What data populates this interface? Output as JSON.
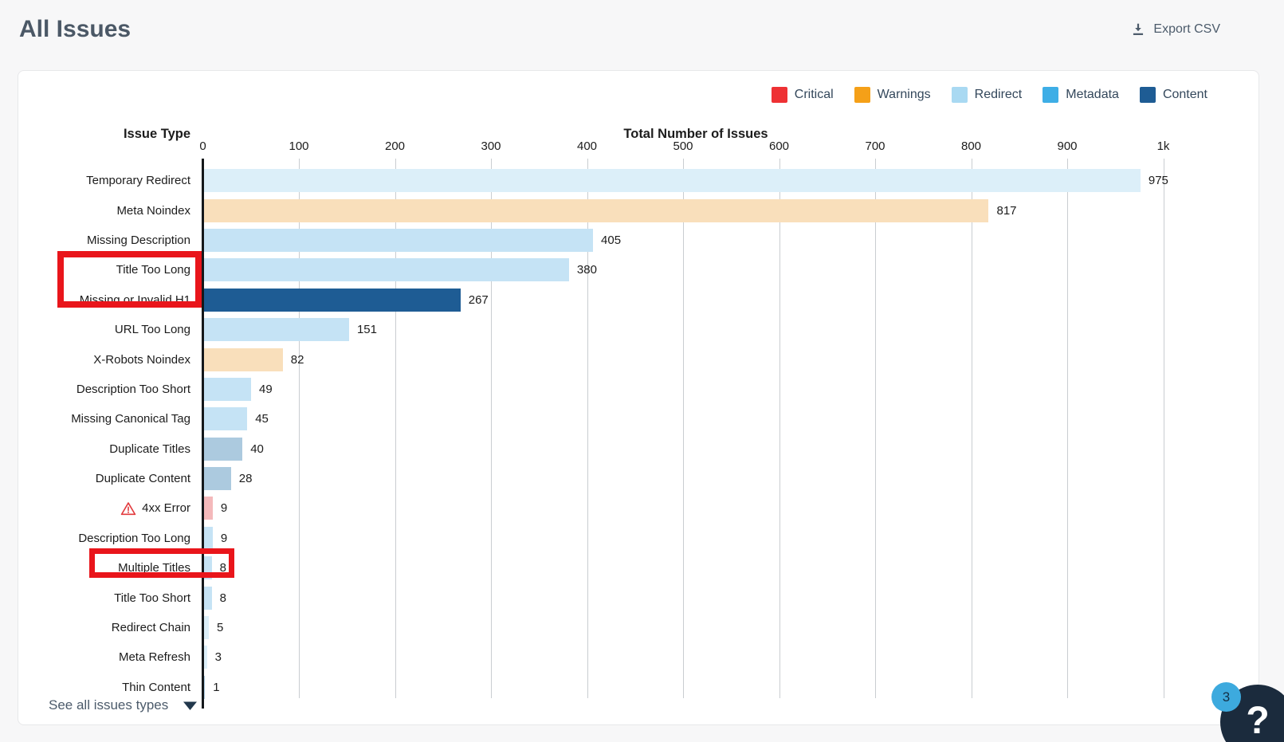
{
  "page": {
    "title": "All Issues"
  },
  "toolbar": {
    "export_label": "Export CSV"
  },
  "legend": {
    "items": [
      {
        "label": "Critical",
        "color": "#ee3134"
      },
      {
        "label": "Warnings",
        "color": "#f5a018"
      },
      {
        "label": "Redirect",
        "color": "#a9d9f2"
      },
      {
        "label": "Metadata",
        "color": "#3eaee6"
      },
      {
        "label": "Content",
        "color": "#1e5c94"
      }
    ]
  },
  "chart_data": {
    "type": "bar",
    "orientation": "horizontal",
    "ylabel_header": "Issue Type",
    "xlabel_header": "Total Number of Issues",
    "xlim": [
      0,
      1000
    ],
    "grid": "vertical",
    "x_ticks": [
      {
        "value": 0,
        "label": "0"
      },
      {
        "value": 100,
        "label": "100"
      },
      {
        "value": 200,
        "label": "200"
      },
      {
        "value": 300,
        "label": "300"
      },
      {
        "value": 400,
        "label": "400"
      },
      {
        "value": 500,
        "label": "500"
      },
      {
        "value": 600,
        "label": "600"
      },
      {
        "value": 700,
        "label": "700"
      },
      {
        "value": 800,
        "label": "800"
      },
      {
        "value": 900,
        "label": "900"
      },
      {
        "value": 1000,
        "label": "1k"
      }
    ],
    "bars": [
      {
        "label": "Temporary Redirect",
        "value": 975,
        "category": "Redirect",
        "color": "#dceff9",
        "warning_icon": false
      },
      {
        "label": "Meta Noindex",
        "value": 817,
        "category": "Warnings",
        "color": "#f9dfbb",
        "warning_icon": false
      },
      {
        "label": "Missing Description",
        "value": 405,
        "category": "Metadata",
        "color": "#c5e3f5",
        "warning_icon": false
      },
      {
        "label": "Title Too Long",
        "value": 380,
        "category": "Metadata",
        "color": "#c5e3f5",
        "warning_icon": false
      },
      {
        "label": "Missing or Invalid H1",
        "value": 267,
        "category": "Content",
        "color": "#1e5c94",
        "warning_icon": false
      },
      {
        "label": "URL Too Long",
        "value": 151,
        "category": "Metadata",
        "color": "#c5e3f5",
        "warning_icon": false
      },
      {
        "label": "X-Robots Noindex",
        "value": 82,
        "category": "Warnings",
        "color": "#f9dfbb",
        "warning_icon": false
      },
      {
        "label": "Description Too Short",
        "value": 49,
        "category": "Metadata",
        "color": "#c5e3f5",
        "warning_icon": false
      },
      {
        "label": "Missing Canonical Tag",
        "value": 45,
        "category": "Metadata",
        "color": "#c5e3f5",
        "warning_icon": false
      },
      {
        "label": "Duplicate Titles",
        "value": 40,
        "category": "Content",
        "color": "#accadf",
        "warning_icon": false
      },
      {
        "label": "Duplicate Content",
        "value": 28,
        "category": "Content",
        "color": "#accadf",
        "warning_icon": false
      },
      {
        "label": "4xx Error",
        "value": 9,
        "category": "Critical",
        "color": "#f4b9bb",
        "warning_icon": true
      },
      {
        "label": "Description Too Long",
        "value": 9,
        "category": "Metadata",
        "color": "#c5e3f5",
        "warning_icon": false
      },
      {
        "label": "Multiple Titles",
        "value": 8,
        "category": "Metadata",
        "color": "#c5e3f5",
        "warning_icon": false
      },
      {
        "label": "Title Too Short",
        "value": 8,
        "category": "Metadata",
        "color": "#c5e3f5",
        "warning_icon": false
      },
      {
        "label": "Redirect Chain",
        "value": 5,
        "category": "Redirect",
        "color": "#dceff9",
        "warning_icon": false
      },
      {
        "label": "Meta Refresh",
        "value": 3,
        "category": "Redirect",
        "color": "#dceff9",
        "warning_icon": false
      },
      {
        "label": "Thin Content",
        "value": 1,
        "category": "Content",
        "color": "#accadf",
        "warning_icon": false
      }
    ],
    "value_labels_shown": true,
    "legend_position": "top-right"
  },
  "annotations": {
    "color": "#e9151b",
    "boxes": [
      {
        "target": "Title Too Long and Missing or Invalid H1 labels"
      },
      {
        "target": "Multiple Titles label and value"
      }
    ]
  },
  "footer": {
    "see_all_label": "See all issues types"
  },
  "help_button": {
    "glyph": "?",
    "badge_count": "3"
  }
}
